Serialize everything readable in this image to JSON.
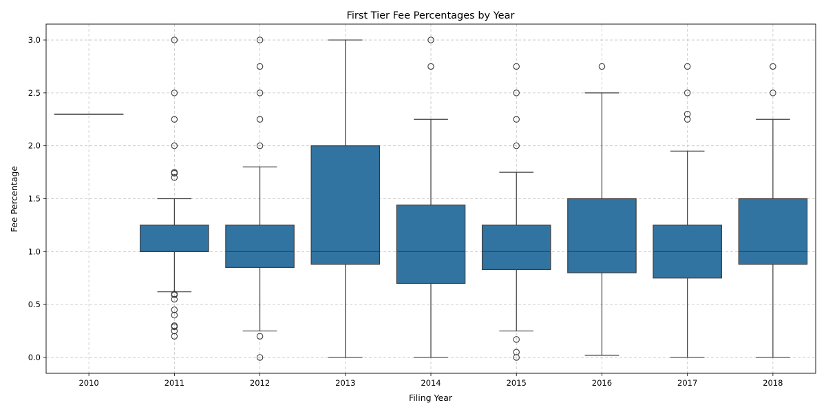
{
  "chart_data": {
    "type": "box",
    "title": "First Tier Fee Percentages by Year",
    "xlabel": "Filing Year",
    "ylabel": "Fee Percentage",
    "ylim": [
      -0.15,
      3.15
    ],
    "yticks": [
      "0.0",
      "0.5",
      "1.0",
      "1.5",
      "2.0",
      "2.5",
      "3.0"
    ],
    "grid": true,
    "box_color": "#3274a1",
    "edge_color": "#3d3d3d",
    "categories": [
      "2010",
      "2011",
      "2012",
      "2013",
      "2014",
      "2015",
      "2016",
      "2017",
      "2018"
    ],
    "boxes": [
      {
        "year": "2010",
        "whisker_low": 2.3,
        "q1": 2.3,
        "median": 2.3,
        "q3": 2.3,
        "whisker_high": 2.3,
        "outliers": []
      },
      {
        "year": "2011",
        "whisker_low": 0.62,
        "q1": 1.0,
        "median": 1.0,
        "q3": 1.25,
        "whisker_high": 1.5,
        "outliers": [
          3.0,
          2.5,
          2.25,
          2.0,
          1.75,
          1.74,
          1.7,
          0.6,
          0.59,
          0.55,
          0.45,
          0.4,
          0.3,
          0.29,
          0.25,
          0.2
        ]
      },
      {
        "year": "2012",
        "whisker_low": 0.25,
        "q1": 0.85,
        "median": 1.0,
        "q3": 1.25,
        "whisker_high": 1.8,
        "outliers": [
          3.0,
          2.75,
          2.5,
          2.25,
          2.0,
          0.2,
          0.0
        ]
      },
      {
        "year": "2013",
        "whisker_low": 0.0,
        "q1": 0.88,
        "median": 1.0,
        "q3": 2.0,
        "whisker_high": 3.0,
        "outliers": []
      },
      {
        "year": "2014",
        "whisker_low": 0.0,
        "q1": 0.7,
        "median": 1.0,
        "q3": 1.44,
        "whisker_high": 2.25,
        "outliers": [
          3.0,
          2.75
        ]
      },
      {
        "year": "2015",
        "whisker_low": 0.25,
        "q1": 0.83,
        "median": 1.0,
        "q3": 1.25,
        "whisker_high": 1.75,
        "outliers": [
          2.75,
          2.5,
          2.25,
          2.0,
          0.17,
          0.05,
          0.0
        ]
      },
      {
        "year": "2016",
        "whisker_low": 0.02,
        "q1": 0.8,
        "median": 1.0,
        "q3": 1.5,
        "whisker_high": 2.5,
        "outliers": [
          2.75
        ]
      },
      {
        "year": "2017",
        "whisker_low": 0.0,
        "q1": 0.75,
        "median": 1.0,
        "q3": 1.25,
        "whisker_high": 1.95,
        "outliers": [
          2.75,
          2.5,
          2.3,
          2.25
        ]
      },
      {
        "year": "2018",
        "whisker_low": 0.0,
        "q1": 0.88,
        "median": 1.0,
        "q3": 1.5,
        "whisker_high": 2.25,
        "outliers": [
          2.75,
          2.5
        ]
      }
    ]
  }
}
